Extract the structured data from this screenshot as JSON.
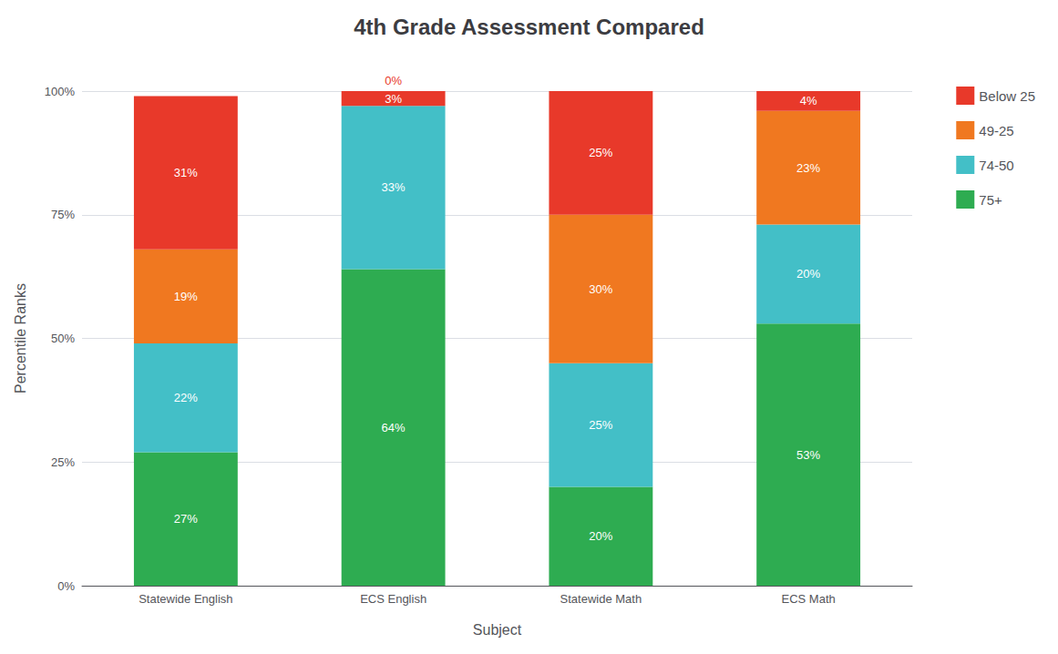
{
  "chart_data": {
    "type": "bar",
    "title": "4th Grade Assessment Compared",
    "xlabel": "Subject",
    "ylabel": "Percentile Ranks",
    "categories": [
      "Statewide English",
      "ECS English",
      "Statewide Math",
      "ECS Math"
    ],
    "stacked": true,
    "data_labels": true,
    "grid": true,
    "legend": "upper right",
    "series": [
      {
        "name": "75+",
        "color": "#2eac51",
        "values": [
          27,
          64,
          20,
          53
        ],
        "value_labels": [
          "27%",
          "64%",
          "20%",
          "53%"
        ]
      },
      {
        "name": "74-50",
        "color": "#43bfc7",
        "values": [
          22,
          33,
          25,
          20
        ],
        "value_labels": [
          "22%",
          "33%",
          "25%",
          "20%"
        ]
      },
      {
        "name": "49-25",
        "color": "#f07820",
        "values": [
          19,
          0,
          30,
          23
        ],
        "value_labels": [
          "19%",
          "0%",
          "30%",
          "23%"
        ]
      },
      {
        "name": "Below 25",
        "color": "#e8392a",
        "values": [
          31,
          3,
          25,
          4
        ],
        "value_labels": [
          "31%",
          "3%",
          "25%",
          "4%"
        ]
      }
    ],
    "ylim": [
      0,
      100
    ],
    "yticks": [
      {
        "value": 0,
        "label": "0%"
      },
      {
        "value": 25,
        "label": "25%"
      },
      {
        "value": 50,
        "label": "50%"
      },
      {
        "value": 75,
        "label": "75%"
      },
      {
        "value": 100,
        "label": "100%"
      }
    ]
  }
}
